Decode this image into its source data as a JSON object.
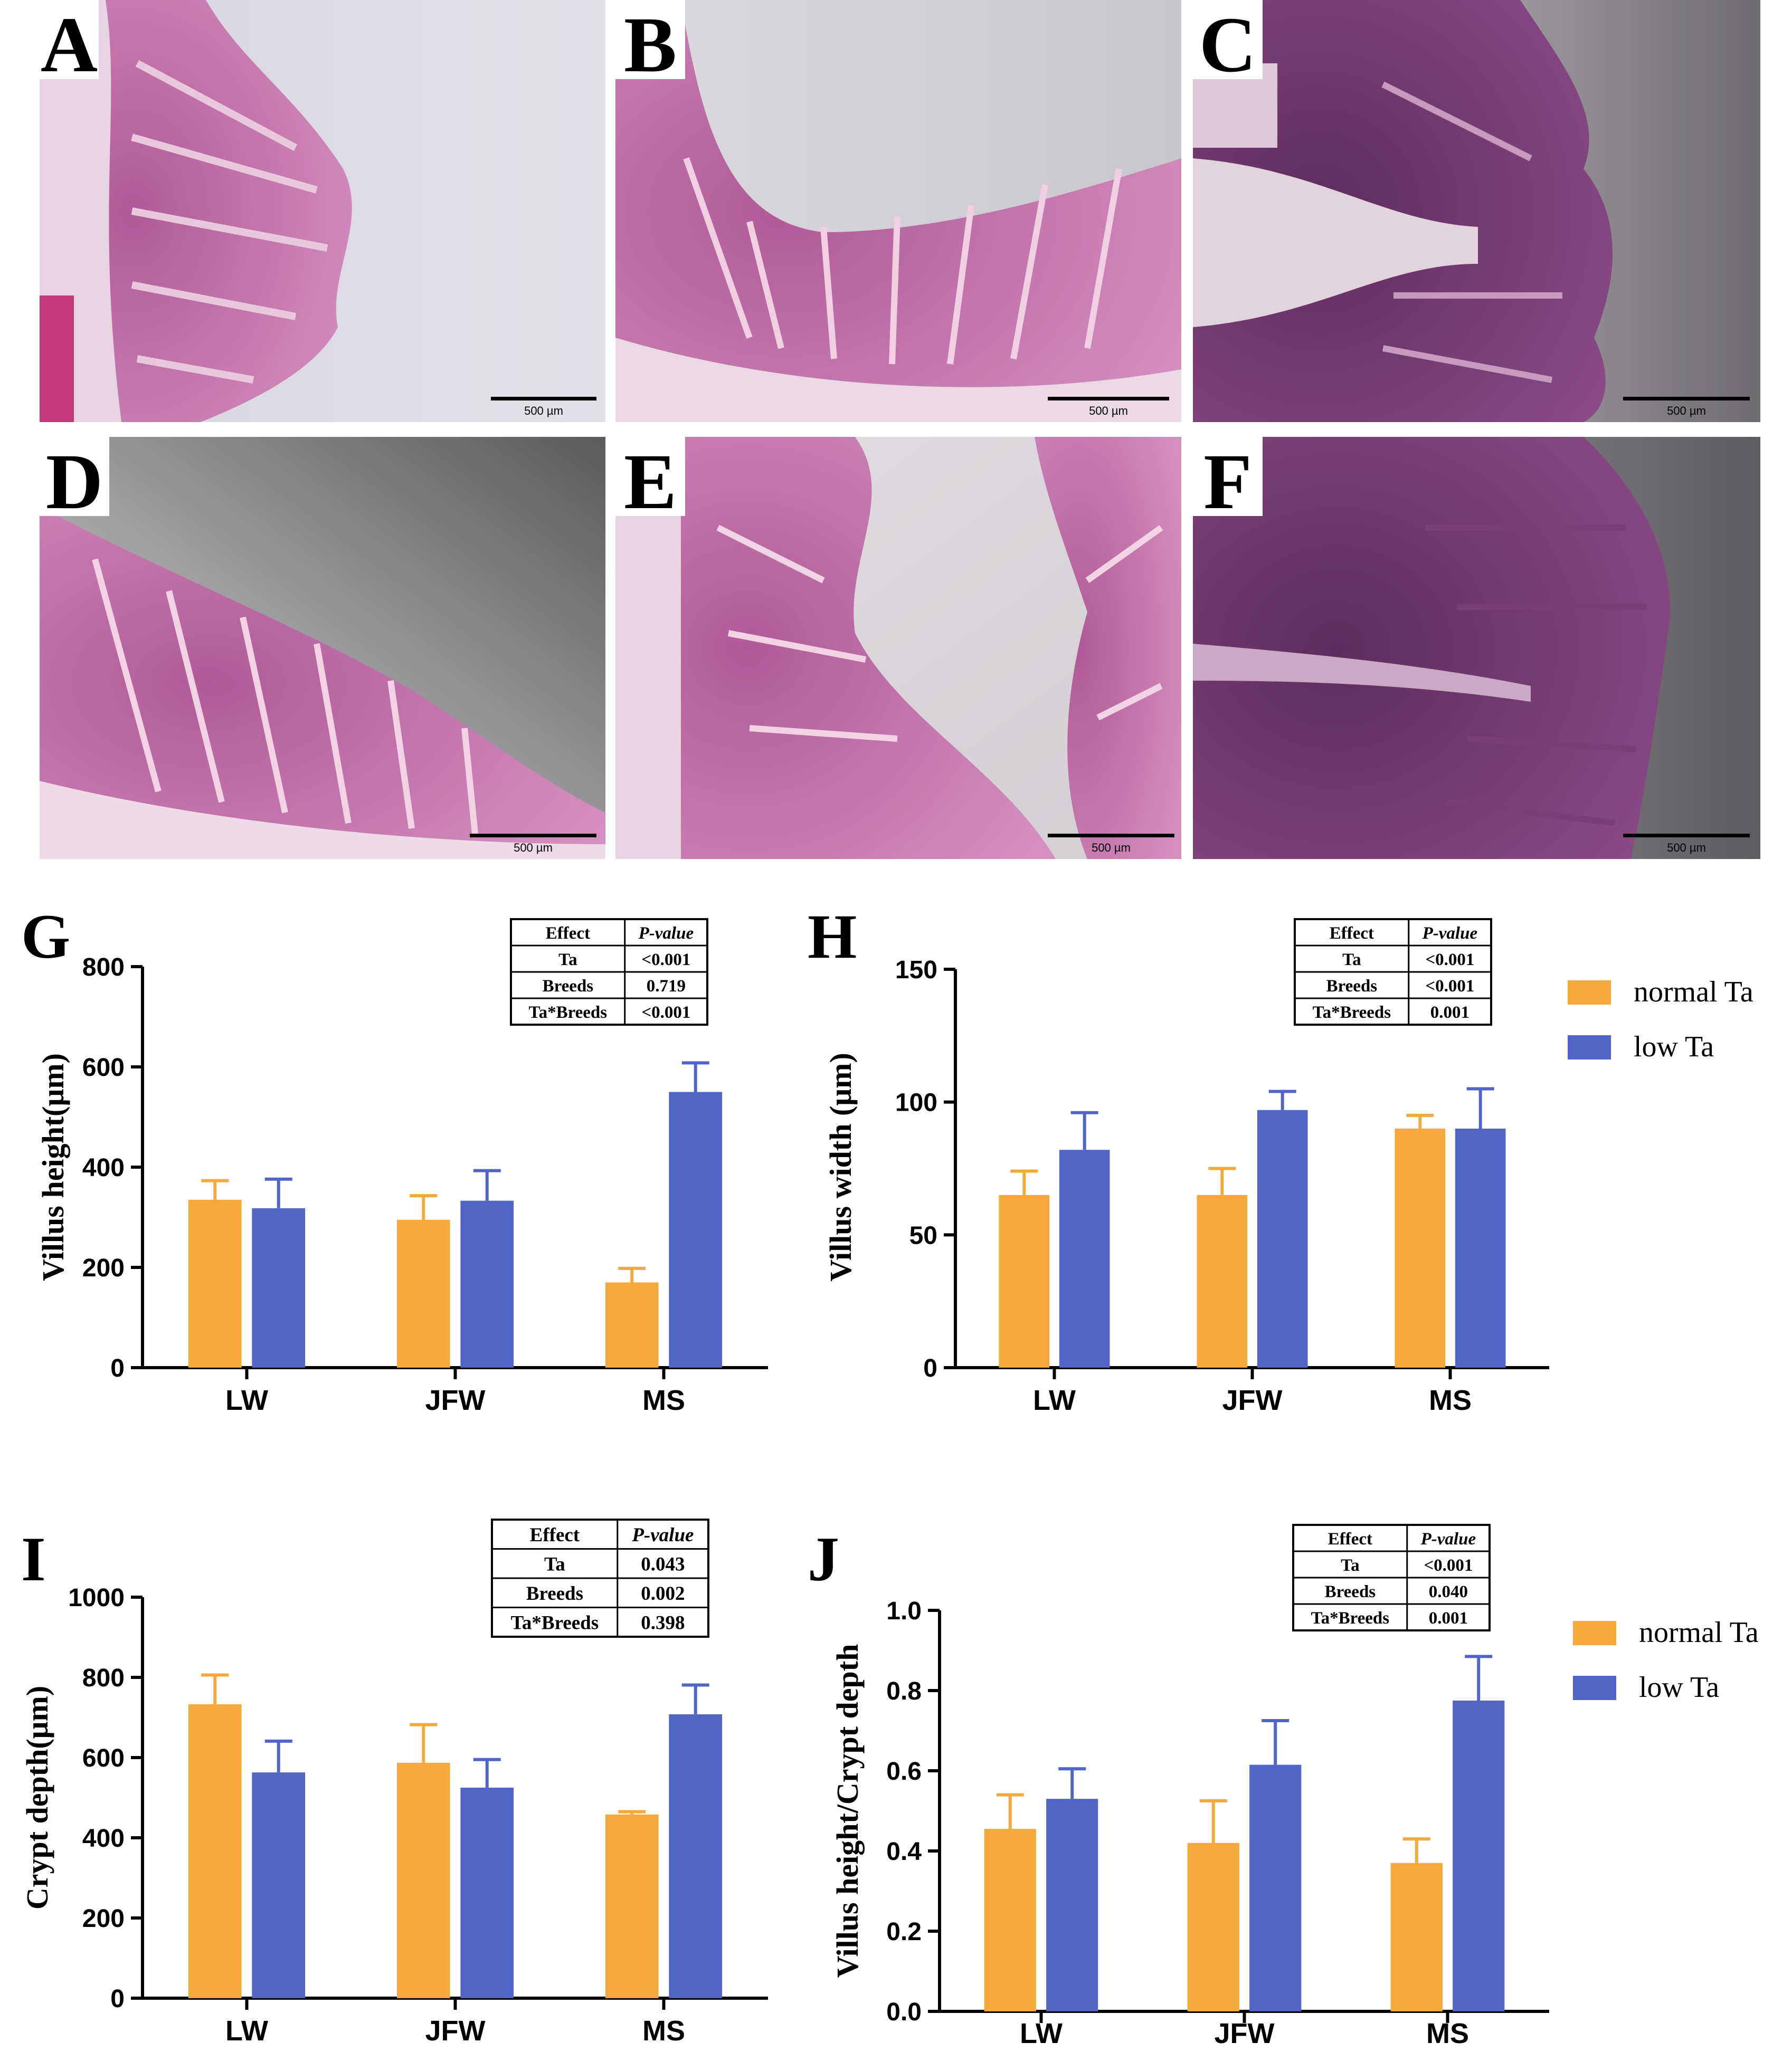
{
  "micrographs": [
    {
      "letter": "A",
      "scale_label": "500 µm"
    },
    {
      "letter": "B",
      "scale_label": "500 µm"
    },
    {
      "letter": "C",
      "scale_label": "500 µm"
    },
    {
      "letter": "D",
      "scale_label": "500 µm"
    },
    {
      "letter": "E",
      "scale_label": "500 µm"
    },
    {
      "letter": "F",
      "scale_label": "500 µm"
    }
  ],
  "legend": {
    "items": [
      {
        "label": "normal Ta",
        "color": "#F5A93A"
      },
      {
        "label": "low Ta",
        "color": "#5065C6"
      }
    ]
  },
  "chart_data": [
    {
      "panel": "G",
      "type": "bar",
      "categories": [
        "LW",
        "JFW",
        "MS"
      ],
      "ylabel": "Villus height(μm)",
      "ylim": [
        0,
        800
      ],
      "yticks": [
        0,
        200,
        400,
        600,
        800
      ],
      "series": [
        {
          "name": "normal Ta",
          "color": "#F5A93A",
          "values": [
            335,
            295,
            170
          ],
          "errors": [
            38,
            48,
            28
          ]
        },
        {
          "name": "low Ta",
          "color": "#5065C6",
          "values": [
            318,
            333,
            550
          ],
          "errors": [
            58,
            60,
            58
          ]
        }
      ],
      "stats_table": {
        "header": [
          "Effect",
          "P-value"
        ],
        "rows": [
          [
            "Ta",
            "<0.001"
          ],
          [
            "Breeds",
            "0.719"
          ],
          [
            "Ta*Breeds",
            "<0.001"
          ]
        ]
      }
    },
    {
      "panel": "H",
      "type": "bar",
      "categories": [
        "LW",
        "JFW",
        "MS"
      ],
      "ylabel": "Villus width (μm)",
      "ylim": [
        0,
        150
      ],
      "yticks": [
        0,
        50,
        100,
        150
      ],
      "series": [
        {
          "name": "normal Ta",
          "color": "#F5A93A",
          "values": [
            65,
            65,
            90
          ],
          "errors": [
            9,
            10,
            5
          ]
        },
        {
          "name": "low Ta",
          "color": "#5065C6",
          "values": [
            82,
            97,
            90
          ],
          "errors": [
            14,
            7,
            15
          ]
        }
      ],
      "stats_table": {
        "header": [
          "Effect",
          "P-value"
        ],
        "rows": [
          [
            "Ta",
            "<0.001"
          ],
          [
            "Breeds",
            "<0.001"
          ],
          [
            "Ta*Breeds",
            "0.001"
          ]
        ]
      }
    },
    {
      "panel": "I",
      "type": "bar",
      "categories": [
        "LW",
        "JFW",
        "MS"
      ],
      "ylabel": "Crypt depth(μm)",
      "ylim": [
        0,
        1000
      ],
      "yticks": [
        0,
        200,
        400,
        600,
        800,
        1000
      ],
      "series": [
        {
          "name": "normal Ta",
          "color": "#F5A93A",
          "values": [
            733,
            587,
            458
          ],
          "errors": [
            73,
            95,
            7
          ]
        },
        {
          "name": "low Ta",
          "color": "#5065C6",
          "values": [
            563,
            525,
            708
          ],
          "errors": [
            78,
            70,
            73
          ]
        }
      ],
      "stats_table": {
        "header": [
          "Effect",
          "P-value"
        ],
        "rows": [
          [
            "Ta",
            "0.043"
          ],
          [
            "Breeds",
            "0.002"
          ],
          [
            "Ta*Breeds",
            "0.398"
          ]
        ]
      }
    },
    {
      "panel": "J",
      "type": "bar",
      "categories": [
        "LW",
        "JFW",
        "MS"
      ],
      "ylabel": "Villus height/Crypt depth",
      "ylim": [
        0,
        1.0
      ],
      "yticks": [
        "0.0",
        "0.2",
        "0.4",
        "0.6",
        "0.8",
        "1.0"
      ],
      "series": [
        {
          "name": "normal Ta",
          "color": "#F5A93A",
          "values": [
            0.455,
            0.42,
            0.37
          ],
          "errors": [
            0.085,
            0.105,
            0.06
          ]
        },
        {
          "name": "low Ta",
          "color": "#5065C6",
          "values": [
            0.53,
            0.615,
            0.775
          ],
          "errors": [
            0.075,
            0.11,
            0.11
          ]
        }
      ],
      "stats_table": {
        "header": [
          "Effect",
          "P-value"
        ],
        "rows": [
          [
            "Ta",
            "<0.001"
          ],
          [
            "Breeds",
            "0.040"
          ],
          [
            "Ta*Breeds",
            "0.001"
          ]
        ]
      }
    }
  ]
}
